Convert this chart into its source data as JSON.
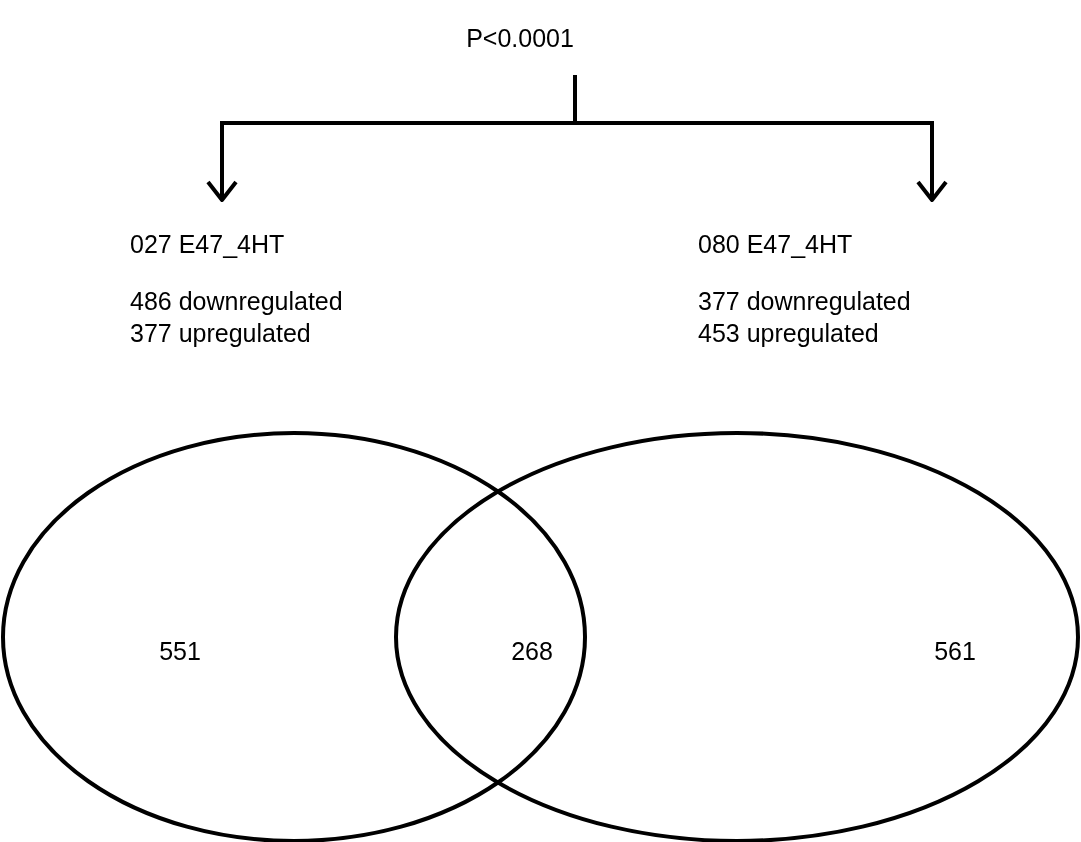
{
  "chart_data": {
    "type": "other",
    "categories": [
      null,
      null,
      null
    ],
    "values": [
      551,
      268,
      561
    ],
    "data_labels": true,
    "annotations": [
      "P<0.0001",
      "027 E47_4HT",
      "486 downregulated",
      "377 upregulated",
      "080 E47_4HT",
      "377 downregulated",
      "453 upregulated"
    ],
    "color": "#000000"
  }
}
